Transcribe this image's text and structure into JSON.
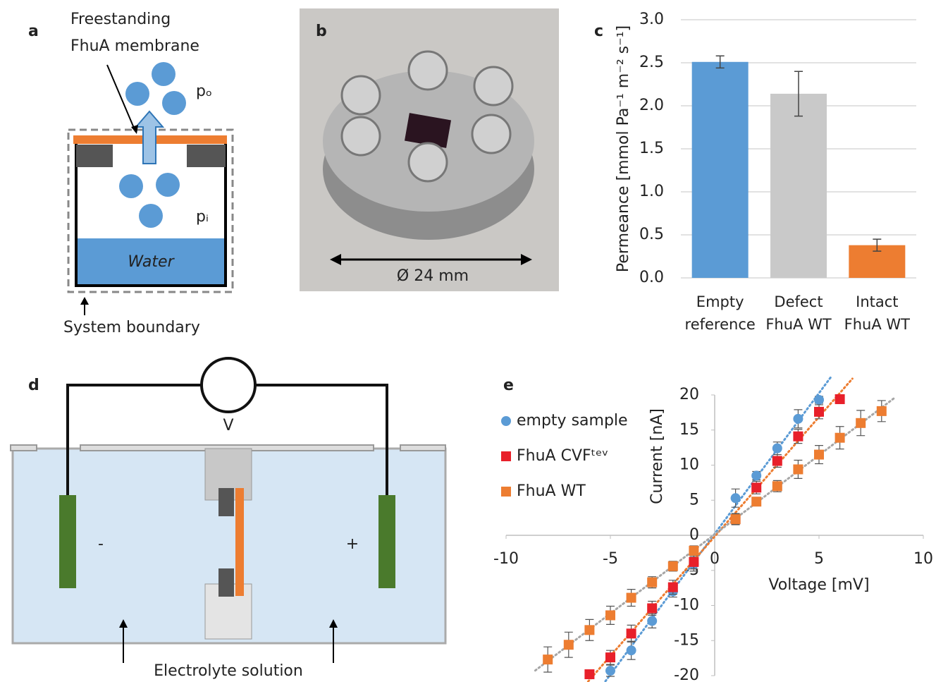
{
  "panel_labels": [
    "a",
    "b",
    "c",
    "d",
    "e"
  ],
  "panel_a": {
    "membrane_label": [
      "Freestanding",
      "FhuA membrane"
    ],
    "outer_pressure": "pₒ",
    "inner_pressure": "pᵢ",
    "water": "Water",
    "boundary": "System boundary"
  },
  "panel_b": {
    "scale": "Ø 24 mm"
  },
  "panel_d": {
    "voltmeter": "V",
    "minus": "-",
    "plus": "+",
    "electrolyte": "Electrolyte solution"
  },
  "chart_data": [
    {
      "type": "bar",
      "ylabel": "Permeance [mmol Pa⁻¹ m⁻² s⁻¹]",
      "categories": [
        "Empty reference",
        "Defect FhuA WT",
        "Intact FhuA WT"
      ],
      "values": [
        2.51,
        2.14,
        0.38
      ],
      "errors": [
        0.07,
        0.26,
        0.07
      ],
      "colors": [
        "#5b9bd5",
        "#c9c9c9",
        "#ed7d31"
      ],
      "ylim": [
        0,
        3
      ],
      "yticks": [
        {
          "value": 0,
          "label": "0.0"
        },
        {
          "value": 0.5,
          "label": "0.5"
        },
        {
          "value": 1,
          "label": "1.0"
        },
        {
          "value": 1.5,
          "label": "1.5"
        },
        {
          "value": 2,
          "label": "2.0"
        },
        {
          "value": 2.5,
          "label": "2.5"
        },
        {
          "value": 3,
          "label": "3.0"
        }
      ],
      "grid": true
    },
    {
      "type": "scatter",
      "xlabel": "Voltage [mV]",
      "ylabel": "Current [nA]",
      "xlim": [
        -10,
        10
      ],
      "ylim": [
        -20,
        20
      ],
      "xticks": [
        -10,
        -5,
        0,
        5,
        10
      ],
      "yticks": [
        -20,
        -15,
        -10,
        -5,
        0,
        5,
        10,
        15,
        20
      ],
      "legend": "left",
      "series": [
        {
          "name": "empty sample",
          "color": "#5b9bd5",
          "marker": "circle",
          "trendline": true,
          "x": [
            -5,
            -4,
            -3,
            -2,
            -1,
            1,
            2,
            3,
            4,
            5
          ],
          "values": [
            -19.3,
            -16.4,
            -12.2,
            -8.0,
            -4.1,
            5.3,
            8.5,
            12.4,
            16.6,
            19.3
          ],
          "errors": [
            0.8,
            1.3,
            1.0,
            0.8,
            1.0,
            1.3,
            0.6,
            0.9,
            1.3,
            0.5
          ]
        },
        {
          "name": "FhuA CVFᵗᵉᵛ",
          "color": "#e8202a",
          "marker": "square",
          "trendline": true,
          "x": [
            -6,
            -5,
            -4,
            -3,
            -2,
            -1,
            1,
            2,
            3,
            4,
            5,
            6
          ],
          "values": [
            -19.8,
            -17.4,
            -14.0,
            -10.4,
            -7.4,
            -3.8,
            2.3,
            6.8,
            10.6,
            14.1,
            17.6,
            19.4
          ],
          "errors": [
            0.5,
            1.0,
            1.2,
            1.0,
            1.0,
            1.0,
            0.8,
            0.9,
            0.9,
            1.0,
            1.0,
            0.5
          ]
        },
        {
          "name": "FhuA WT",
          "color": "#ed7d31",
          "marker": "square",
          "trendline": true,
          "x": [
            -8,
            -7,
            -6,
            -5,
            -4,
            -3,
            -2,
            -1,
            1,
            2,
            3,
            4,
            5,
            6,
            7,
            8
          ],
          "values": [
            -17.7,
            -15.6,
            -13.5,
            -11.4,
            -8.9,
            -6.7,
            -4.4,
            -2.2,
            2.3,
            4.8,
            7.0,
            9.4,
            11.5,
            13.9,
            16.0,
            17.7
          ],
          "errors": [
            1.8,
            1.8,
            1.5,
            1.3,
            1.2,
            0.8,
            0.7,
            0.7,
            0.7,
            0.6,
            0.8,
            1.3,
            1.3,
            1.6,
            1.8,
            1.5
          ]
        }
      ]
    }
  ]
}
